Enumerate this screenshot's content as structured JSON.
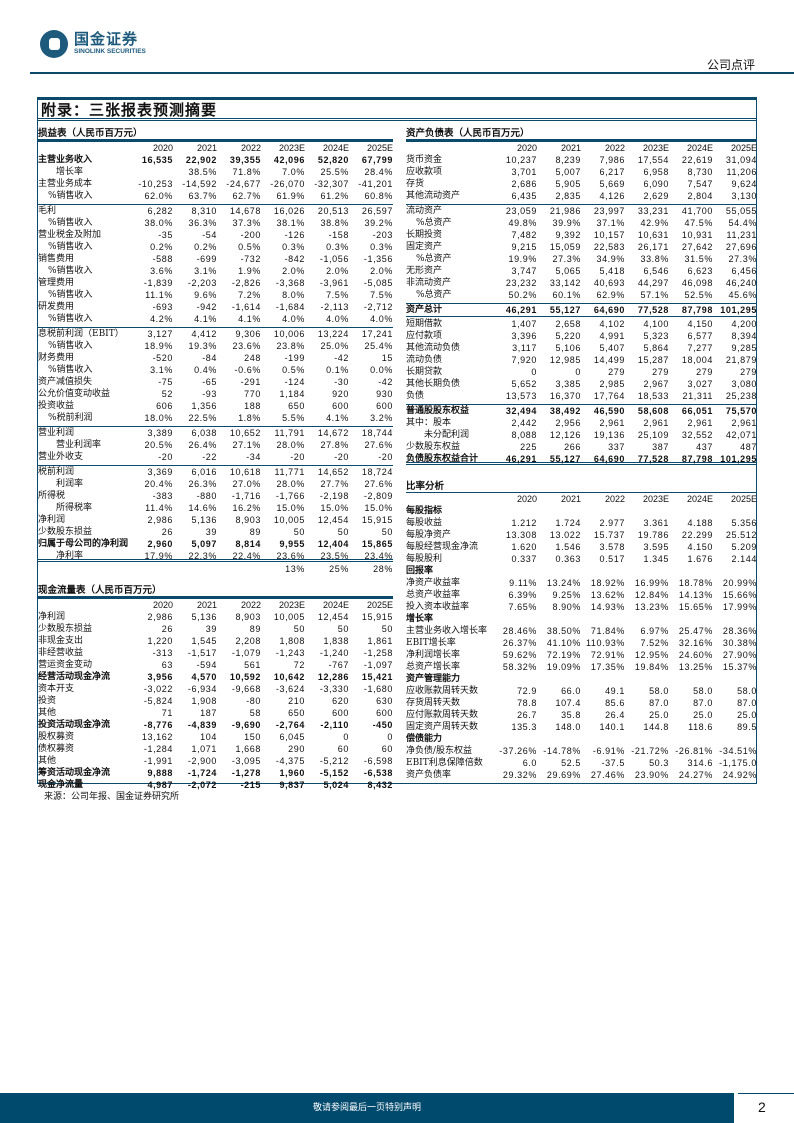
{
  "header": {
    "logo_cn": "国金证券",
    "logo_en": "SINOLINK SECURITIES",
    "doc_type": "公司点评"
  },
  "box_title": "附录：三张报表预测摘要",
  "years": [
    "2020",
    "2021",
    "2022",
    "2023E",
    "2024E",
    "2025E"
  ],
  "income": {
    "title": "损益表（人民币百万元）",
    "rows": [
      {
        "label": "主营业务收入",
        "values": [
          "16,535",
          "22,902",
          "39,355",
          "42,096",
          "52,820",
          "67,799"
        ],
        "bold": true
      },
      {
        "label": "增长率",
        "values": [
          "",
          "38.5%",
          "71.8%",
          "7.0%",
          "25.5%",
          "28.4%"
        ],
        "indent": 2
      },
      {
        "label": "主营业务成本",
        "values": [
          "-10,253",
          "-14,592",
          "-24,677",
          "-26,070",
          "-32,307",
          "-41,201"
        ]
      },
      {
        "label": "%销售收入",
        "values": [
          "62.0%",
          "63.7%",
          "62.7%",
          "61.9%",
          "61.2%",
          "60.8%"
        ],
        "indent": 1
      },
      {
        "label": "毛利",
        "values": [
          "6,282",
          "8,310",
          "14,678",
          "16,026",
          "20,513",
          "26,597"
        ],
        "sep": true
      },
      {
        "label": "%销售收入",
        "values": [
          "38.0%",
          "36.3%",
          "37.3%",
          "38.1%",
          "38.8%",
          "39.2%"
        ],
        "indent": 1
      },
      {
        "label": "营业税金及附加",
        "values": [
          "-35",
          "-54",
          "-200",
          "-126",
          "-158",
          "-203"
        ]
      },
      {
        "label": "%销售收入",
        "values": [
          "0.2%",
          "0.2%",
          "0.5%",
          "0.3%",
          "0.3%",
          "0.3%"
        ],
        "indent": 1
      },
      {
        "label": "销售费用",
        "values": [
          "-588",
          "-699",
          "-732",
          "-842",
          "-1,056",
          "-1,356"
        ]
      },
      {
        "label": "%销售收入",
        "values": [
          "3.6%",
          "3.1%",
          "1.9%",
          "2.0%",
          "2.0%",
          "2.0%"
        ],
        "indent": 1
      },
      {
        "label": "管理费用",
        "values": [
          "-1,839",
          "-2,203",
          "-2,826",
          "-3,368",
          "-3,961",
          "-5,085"
        ]
      },
      {
        "label": "%销售收入",
        "values": [
          "11.1%",
          "9.6%",
          "7.2%",
          "8.0%",
          "7.5%",
          "7.5%"
        ],
        "indent": 1
      },
      {
        "label": "研发费用",
        "values": [
          "-693",
          "-942",
          "-1,614",
          "-1,684",
          "-2,113",
          "-2,712"
        ]
      },
      {
        "label": "%销售收入",
        "values": [
          "4.2%",
          "4.1%",
          "4.1%",
          "4.0%",
          "4.0%",
          "4.0%"
        ],
        "indent": 1
      },
      {
        "label": "息税前利润（EBIT）",
        "values": [
          "3,127",
          "4,412",
          "9,306",
          "10,006",
          "13,224",
          "17,241"
        ],
        "sep": true
      },
      {
        "label": "%销售收入",
        "values": [
          "18.9%",
          "19.3%",
          "23.6%",
          "23.8%",
          "25.0%",
          "25.4%"
        ],
        "indent": 1
      },
      {
        "label": "财务费用",
        "values": [
          "-520",
          "-84",
          "248",
          "-199",
          "-42",
          "15"
        ]
      },
      {
        "label": "%销售收入",
        "values": [
          "3.1%",
          "0.4%",
          "-0.6%",
          "0.5%",
          "0.1%",
          "0.0%"
        ],
        "indent": 1
      },
      {
        "label": "资产减值损失",
        "values": [
          "-75",
          "-65",
          "-291",
          "-124",
          "-30",
          "-42"
        ]
      },
      {
        "label": "公允价值变动收益",
        "values": [
          "52",
          "-93",
          "770",
          "1,184",
          "920",
          "930"
        ]
      },
      {
        "label": "投资收益",
        "values": [
          "606",
          "1,356",
          "188",
          "650",
          "600",
          "600"
        ]
      },
      {
        "label": "%税前利润",
        "values": [
          "18.0%",
          "22.5%",
          "1.8%",
          "5.5%",
          "4.1%",
          "3.2%"
        ],
        "indent": 1
      },
      {
        "label": "营业利润",
        "values": [
          "3,389",
          "6,038",
          "10,652",
          "11,791",
          "14,672",
          "18,744"
        ],
        "sep": true
      },
      {
        "label": "营业利润率",
        "values": [
          "20.5%",
          "26.4%",
          "27.1%",
          "28.0%",
          "27.8%",
          "27.6%"
        ],
        "indent": 2
      },
      {
        "label": "营业外收支",
        "values": [
          "-20",
          "-22",
          "-34",
          "-20",
          "-20",
          "-20"
        ]
      },
      {
        "label": "税前利润",
        "values": [
          "3,369",
          "6,016",
          "10,618",
          "11,771",
          "14,652",
          "18,724"
        ],
        "sep": true
      },
      {
        "label": "利润率",
        "values": [
          "20.4%",
          "26.3%",
          "27.0%",
          "28.0%",
          "27.7%",
          "27.6%"
        ],
        "indent": 2
      },
      {
        "label": "所得税",
        "values": [
          "-383",
          "-880",
          "-1,716",
          "-1,766",
          "-2,198",
          "-2,809"
        ]
      },
      {
        "label": "所得税率",
        "values": [
          "11.4%",
          "14.6%",
          "16.2%",
          "15.0%",
          "15.0%",
          "15.0%"
        ],
        "indent": 2
      },
      {
        "label": "净利润",
        "values": [
          "2,986",
          "5,136",
          "8,903",
          "10,005",
          "12,454",
          "15,915"
        ]
      },
      {
        "label": "少数股东损益",
        "values": [
          "26",
          "39",
          "89",
          "50",
          "50",
          "50"
        ]
      },
      {
        "label": "归属于母公司的净利润",
        "values": [
          "2,960",
          "5,097",
          "8,814",
          "9,955",
          "12,404",
          "15,865"
        ],
        "bold": true
      },
      {
        "label": "净利率",
        "values": [
          "17.9%",
          "22.3%",
          "22.4%",
          "23.6%",
          "23.5%",
          "23.4%"
        ],
        "indent": 2
      }
    ],
    "extra_row": [
      "",
      "",
      "",
      "13%",
      "25%",
      "28%"
    ]
  },
  "cashflow": {
    "title": "现金流量表（人民币百万元）",
    "rows": [
      {
        "label": "净利润",
        "values": [
          "2,986",
          "5,136",
          "8,903",
          "10,005",
          "12,454",
          "15,915"
        ]
      },
      {
        "label": "少数股东损益",
        "values": [
          "26",
          "39",
          "89",
          "50",
          "50",
          "50"
        ]
      },
      {
        "label": "非现金支出",
        "values": [
          "1,220",
          "1,545",
          "2,208",
          "1,808",
          "1,838",
          "1,861"
        ]
      },
      {
        "label": "非经营收益",
        "values": [
          "-313",
          "-1,517",
          "-1,079",
          "-1,243",
          "-1,240",
          "-1,258"
        ]
      },
      {
        "label": "营运资金变动",
        "values": [
          "63",
          "-594",
          "561",
          "72",
          "-767",
          "-1,097"
        ]
      },
      {
        "label": "经营活动现金净流",
        "values": [
          "3,956",
          "4,570",
          "10,592",
          "10,642",
          "12,286",
          "15,421"
        ],
        "bold": true
      },
      {
        "label": "资本开支",
        "values": [
          "-3,022",
          "-6,934",
          "-9,668",
          "-3,624",
          "-3,330",
          "-1,680"
        ]
      },
      {
        "label": "投资",
        "values": [
          "-5,824",
          "1,908",
          "-80",
          "210",
          "620",
          "630"
        ]
      },
      {
        "label": "其他",
        "values": [
          "71",
          "187",
          "58",
          "650",
          "600",
          "600"
        ]
      },
      {
        "label": "投资活动现金净流",
        "values": [
          "-8,776",
          "-4,839",
          "-9,690",
          "-2,764",
          "-2,110",
          "-450"
        ],
        "bold": true
      },
      {
        "label": "股权募资",
        "values": [
          "13,162",
          "104",
          "150",
          "6,045",
          "0",
          "0"
        ]
      },
      {
        "label": "债权募资",
        "values": [
          "-1,284",
          "1,071",
          "1,668",
          "290",
          "60",
          "60"
        ]
      },
      {
        "label": "其他",
        "values": [
          "-1,991",
          "-2,900",
          "-3,095",
          "-4,375",
          "-5,212",
          "-6,598"
        ]
      },
      {
        "label": "筹资活动现金净流",
        "values": [
          "9,888",
          "-1,724",
          "-1,278",
          "1,960",
          "-5,152",
          "-6,538"
        ],
        "bold": true
      },
      {
        "label": "现金净流量",
        "values": [
          "4,987",
          "-2,072",
          "-215",
          "9,837",
          "5,024",
          "8,432"
        ],
        "bold": true
      }
    ]
  },
  "balance": {
    "title": "资产负债表（人民币百万元）",
    "rows": [
      {
        "label": "货币资金",
        "values": [
          "10,237",
          "8,239",
          "7,986",
          "17,554",
          "22,619",
          "31,094"
        ]
      },
      {
        "label": "应收款项",
        "values": [
          "3,701",
          "5,007",
          "6,217",
          "6,958",
          "8,730",
          "11,206"
        ]
      },
      {
        "label": "存货",
        "values": [
          "2,686",
          "5,905",
          "5,669",
          "6,090",
          "7,547",
          "9,624"
        ]
      },
      {
        "label": "其他流动资产",
        "values": [
          "6,435",
          "2,835",
          "4,126",
          "2,629",
          "2,804",
          "3,130"
        ]
      },
      {
        "label": "流动资产",
        "values": [
          "23,059",
          "21,986",
          "23,997",
          "33,231",
          "41,700",
          "55,055"
        ],
        "sep": true
      },
      {
        "label": "%总资产",
        "values": [
          "49.8%",
          "39.9%",
          "37.1%",
          "42.9%",
          "47.5%",
          "54.4%"
        ],
        "indent": 1
      },
      {
        "label": "长期投资",
        "values": [
          "7,482",
          "9,392",
          "10,157",
          "10,631",
          "10,931",
          "11,231"
        ]
      },
      {
        "label": "固定资产",
        "values": [
          "9,215",
          "15,059",
          "22,583",
          "26,171",
          "27,642",
          "27,696"
        ]
      },
      {
        "label": "%总资产",
        "values": [
          "19.9%",
          "27.3%",
          "34.9%",
          "33.8%",
          "31.5%",
          "27.3%"
        ],
        "indent": 1
      },
      {
        "label": "无形资产",
        "values": [
          "3,747",
          "5,065",
          "5,418",
          "6,546",
          "6,623",
          "6,456"
        ]
      },
      {
        "label": "非流动资产",
        "values": [
          "23,232",
          "33,142",
          "40,693",
          "44,297",
          "46,098",
          "46,240"
        ]
      },
      {
        "label": "%总资产",
        "values": [
          "50.2%",
          "60.1%",
          "62.9%",
          "57.1%",
          "52.5%",
          "45.6%"
        ],
        "indent": 1
      },
      {
        "label": "资产总计",
        "values": [
          "46,291",
          "55,127",
          "64,690",
          "77,528",
          "87,798",
          "101,295"
        ],
        "bold": true,
        "sep": true,
        "under": true
      },
      {
        "label": "短期借款",
        "values": [
          "1,407",
          "2,658",
          "4,102",
          "4,100",
          "4,150",
          "4,200"
        ]
      },
      {
        "label": "应付款项",
        "values": [
          "3,396",
          "5,220",
          "4,991",
          "5,323",
          "6,577",
          "8,394"
        ]
      },
      {
        "label": "其他流动负债",
        "values": [
          "3,117",
          "5,106",
          "5,407",
          "5,864",
          "7,277",
          "9,285"
        ]
      },
      {
        "label": "流动负债",
        "values": [
          "7,920",
          "12,985",
          "14,499",
          "15,287",
          "18,004",
          "21,879"
        ]
      },
      {
        "label": "长期贷款",
        "values": [
          "0",
          "0",
          "279",
          "279",
          "279",
          "279"
        ]
      },
      {
        "label": "其他长期负债",
        "values": [
          "5,652",
          "3,385",
          "2,985",
          "2,967",
          "3,027",
          "3,080"
        ]
      },
      {
        "label": "负债",
        "values": [
          "13,573",
          "16,370",
          "17,764",
          "18,533",
          "21,311",
          "25,238"
        ]
      },
      {
        "label": "普通股股东权益",
        "values": [
          "32,494",
          "38,492",
          "46,590",
          "58,608",
          "66,051",
          "75,570"
        ],
        "bold": true,
        "sep": true
      },
      {
        "label": "其中：股本",
        "values": [
          "2,442",
          "2,956",
          "2,961",
          "2,961",
          "2,961",
          "2,961"
        ]
      },
      {
        "label": "未分配利润",
        "values": [
          "8,088",
          "12,126",
          "19,136",
          "25,109",
          "32,552",
          "42,071"
        ],
        "indent": 2
      },
      {
        "label": "少数股东权益",
        "values": [
          "225",
          "266",
          "337",
          "387",
          "437",
          "487"
        ]
      },
      {
        "label": "负债股东权益合计",
        "values": [
          "46,291",
          "55,127",
          "64,690",
          "77,528",
          "87,798",
          "101,295"
        ],
        "bold": true
      }
    ]
  },
  "ratios": {
    "title": "比率分析",
    "rows": [
      {
        "label": "每股指标",
        "values": [
          "",
          "",
          "",
          "",
          "",
          ""
        ],
        "section": true
      },
      {
        "label": "每股收益",
        "values": [
          "1.212",
          "1.724",
          "2.977",
          "3.361",
          "4.188",
          "5.356"
        ]
      },
      {
        "label": "每股净资产",
        "values": [
          "13.308",
          "13.022",
          "15.737",
          "19.786",
          "22.299",
          "25.512"
        ]
      },
      {
        "label": "每股经营现金净流",
        "values": [
          "1.620",
          "1.546",
          "3.578",
          "3.595",
          "4.150",
          "5.209"
        ]
      },
      {
        "label": "每股股利",
        "values": [
          "0.337",
          "0.363",
          "0.517",
          "1.345",
          "1.676",
          "2.144"
        ]
      },
      {
        "label": "回报率",
        "values": [
          "",
          "",
          "",
          "",
          "",
          ""
        ],
        "section": true
      },
      {
        "label": "净资产收益率",
        "values": [
          "9.11%",
          "13.24%",
          "18.92%",
          "16.99%",
          "18.78%",
          "20.99%"
        ]
      },
      {
        "label": "总资产收益率",
        "values": [
          "6.39%",
          "9.25%",
          "13.62%",
          "12.84%",
          "14.13%",
          "15.66%"
        ]
      },
      {
        "label": "投入资本收益率",
        "values": [
          "7.65%",
          "8.90%",
          "14.93%",
          "13.23%",
          "15.65%",
          "17.99%"
        ]
      },
      {
        "label": "增长率",
        "values": [
          "",
          "",
          "",
          "",
          "",
          ""
        ],
        "section": true
      },
      {
        "label": "主营业务收入增长率",
        "values": [
          "28.46%",
          "38.50%",
          "71.84%",
          "6.97%",
          "25.47%",
          "28.36%"
        ]
      },
      {
        "label": "EBIT增长率",
        "values": [
          "26.37%",
          "41.10%",
          "110.93%",
          "7.52%",
          "32.16%",
          "30.38%"
        ]
      },
      {
        "label": "净利润增长率",
        "values": [
          "59.62%",
          "72.19%",
          "72.91%",
          "12.95%",
          "24.60%",
          "27.90%"
        ]
      },
      {
        "label": "总资产增长率",
        "values": [
          "58.32%",
          "19.09%",
          "17.35%",
          "19.84%",
          "13.25%",
          "15.37%"
        ]
      },
      {
        "label": "资产管理能力",
        "values": [
          "",
          "",
          "",
          "",
          "",
          ""
        ],
        "section": true
      },
      {
        "label": "应收账款周转天数",
        "values": [
          "72.9",
          "66.0",
          "49.1",
          "58.0",
          "58.0",
          "58.0"
        ]
      },
      {
        "label": "存货周转天数",
        "values": [
          "78.8",
          "107.4",
          "85.6",
          "87.0",
          "87.0",
          "87.0"
        ]
      },
      {
        "label": "应付账款周转天数",
        "values": [
          "26.7",
          "35.8",
          "26.4",
          "25.0",
          "25.0",
          "25.0"
        ]
      },
      {
        "label": "固定资产周转天数",
        "values": [
          "135.3",
          "148.0",
          "140.1",
          "144.8",
          "118.6",
          "89.5"
        ]
      },
      {
        "label": "偿债能力",
        "values": [
          "",
          "",
          "",
          "",
          "",
          ""
        ],
        "section": true
      },
      {
        "label": "净负债/股东权益",
        "values": [
          "-37.26%",
          "-14.78%",
          "-6.91%",
          "-21.72%",
          "-26.81%",
          "-34.51%"
        ]
      },
      {
        "label": "EBIT利息保障倍数",
        "values": [
          "6.0",
          "52.5",
          "-37.5",
          "50.3",
          "314.6",
          "-1,175.0"
        ]
      },
      {
        "label": "资产负债率",
        "values": [
          "29.32%",
          "29.69%",
          "27.46%",
          "23.90%",
          "24.27%",
          "24.92%"
        ]
      }
    ]
  },
  "source": "来源：公司年报、国金证券研究所",
  "footer": {
    "disclaimer": "敬请参阅最后一页特别声明",
    "page": "2"
  },
  "colors": {
    "brand": "#0b4a6b",
    "footer": "#004a6e"
  }
}
